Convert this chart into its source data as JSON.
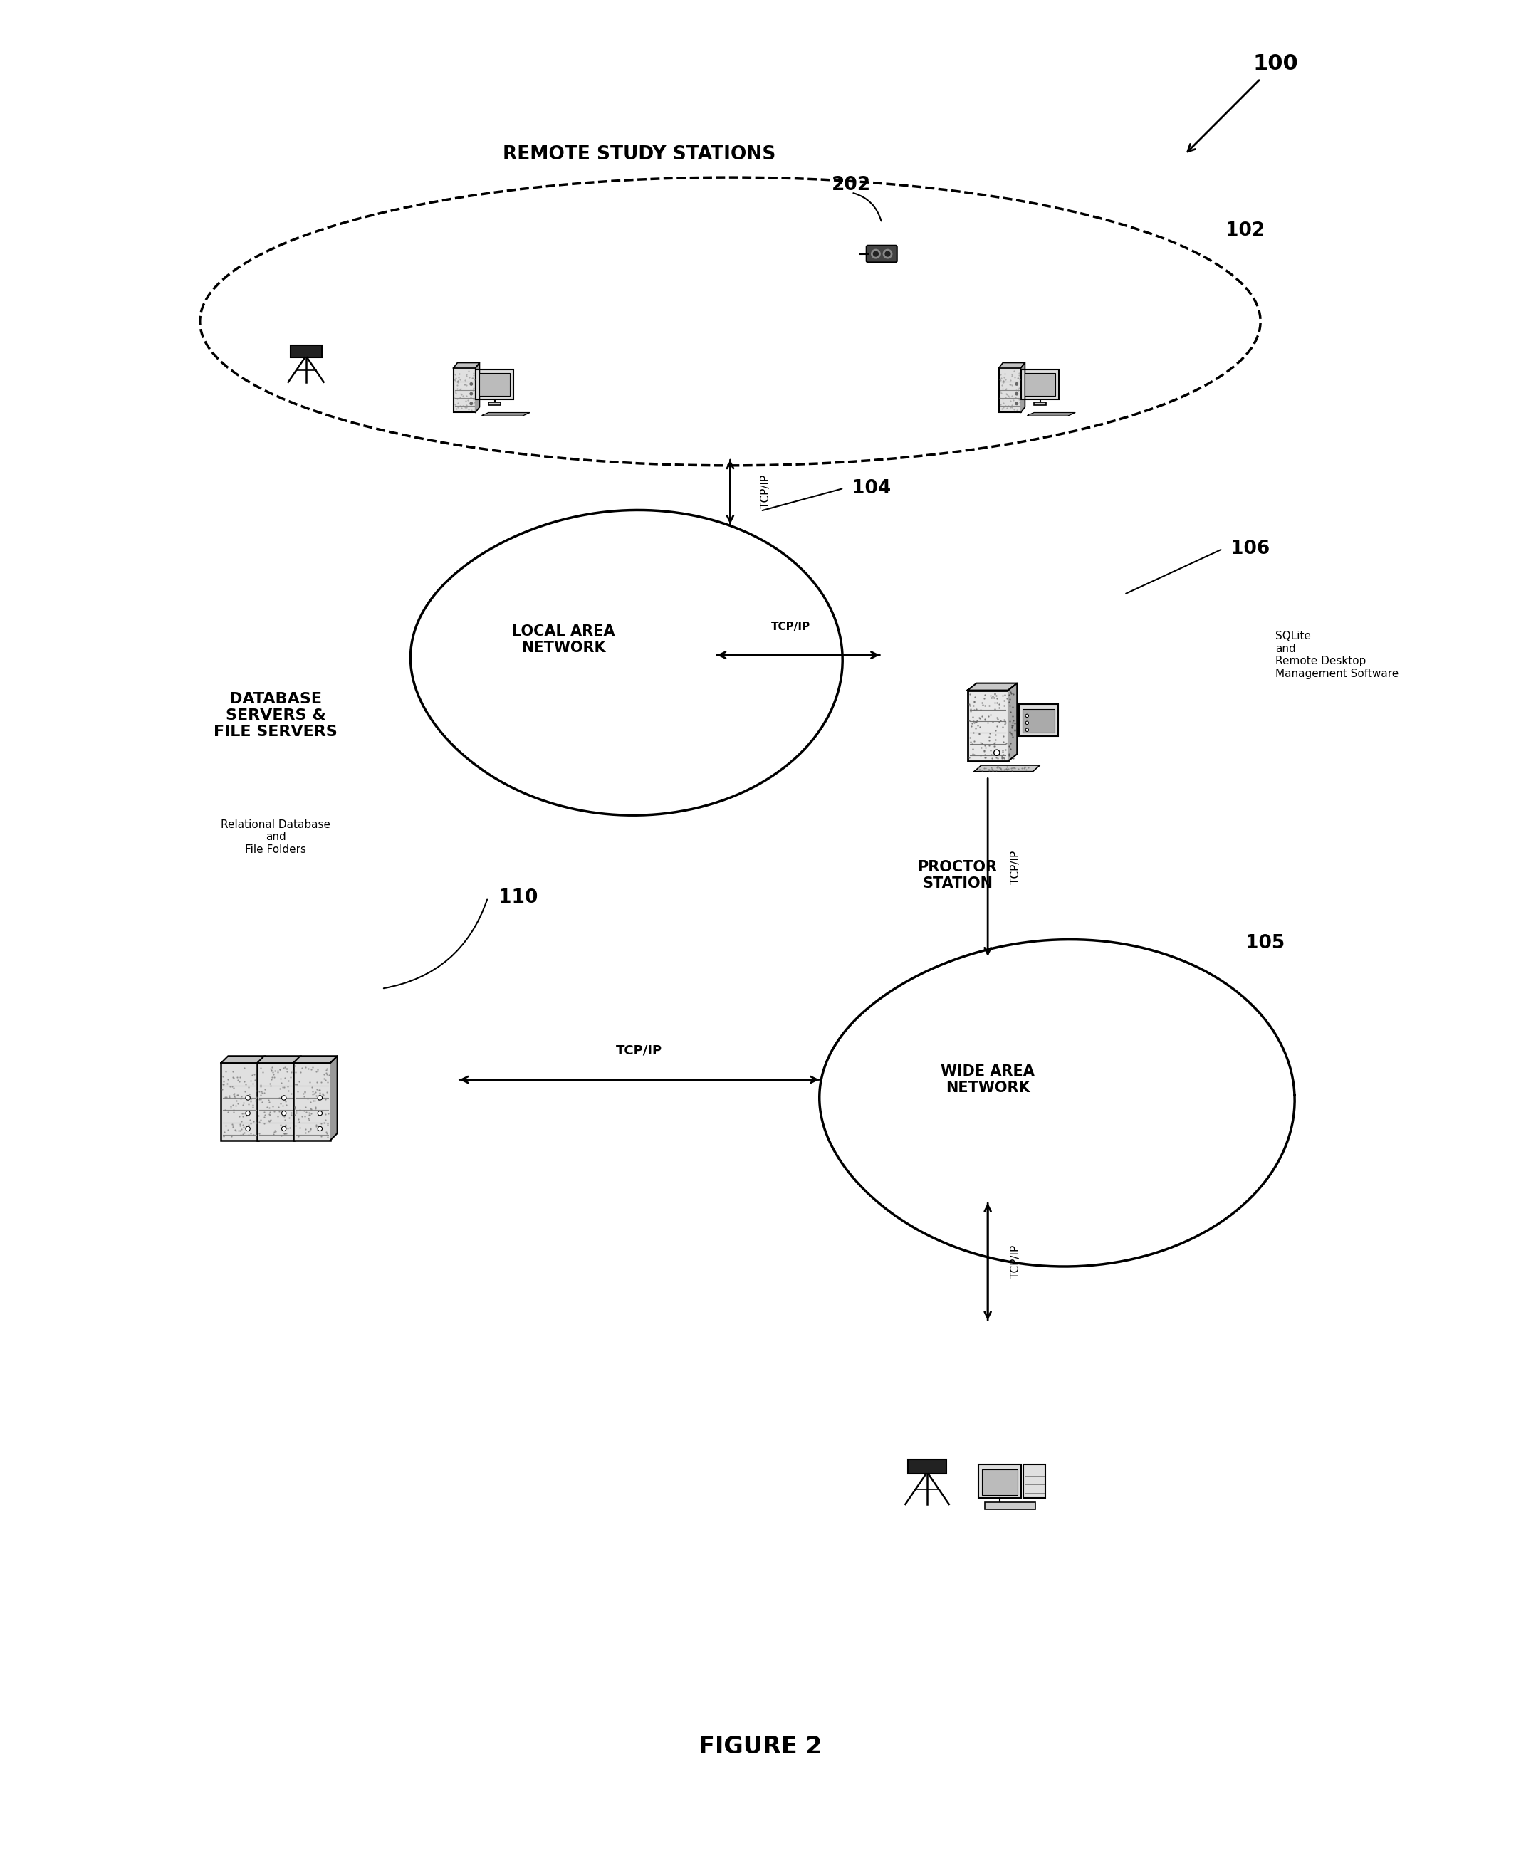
{
  "background_color": "#ffffff",
  "fig_width": 21.36,
  "fig_height": 26.07,
  "labels": {
    "remote_study_stations": "REMOTE STUDY STATIONS",
    "local_area_network": "LOCAL AREA\nNETWORK",
    "proctor_station": "PROCTOR\nSTATION",
    "database_servers": "DATABASE\nSERVERS &\nFILE SERVERS",
    "wide_area_network": "WIDE AREA\nNETWORK",
    "sqlite_label": "SQLite\nand\nRemote Desktop\nManagement Software",
    "rel_db_label": "Relational Database\nand\nFile Folders",
    "figure_label": "FIGURE 2",
    "ref_100": "100",
    "ref_102": "102",
    "ref_104": "104",
    "ref_105": "105",
    "ref_106": "106",
    "ref_110": "110",
    "ref_202": "202",
    "tcpip": "TCP/IP"
  },
  "colors": {
    "black": "#000000",
    "white": "#ffffff",
    "gray": "#888888",
    "light_gray": "#cccccc",
    "dark_gray": "#555555",
    "med_gray": "#999999"
  }
}
